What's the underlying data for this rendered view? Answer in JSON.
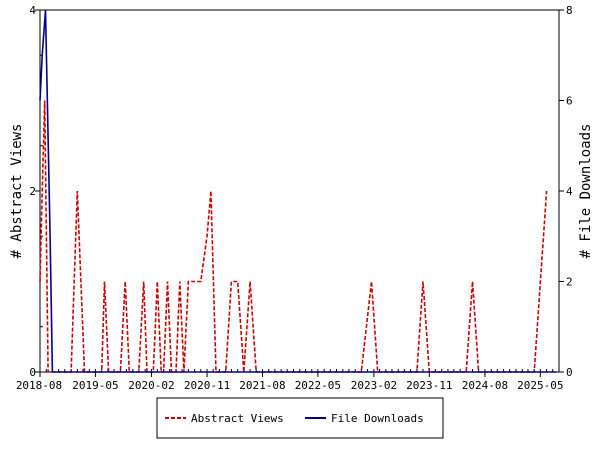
{
  "chart_data": {
    "type": "line",
    "xlabel": "",
    "ylabel_left": "# Abstract Views",
    "ylabel_right": "# File Downloads",
    "x_range": [
      "2018-08",
      "2025-08"
    ],
    "x_ticks": [
      "2018-08",
      "2019-05",
      "2020-02",
      "2020-11",
      "2021-08",
      "2022-05",
      "2023-02",
      "2023-11",
      "2024-08",
      "2025-05"
    ],
    "y_left_range": [
      0,
      4
    ],
    "y_left_ticks": [
      0,
      2,
      4
    ],
    "y_right_range": [
      0,
      8
    ],
    "y_right_ticks": [
      0,
      2,
      4,
      6,
      8
    ],
    "grid": false,
    "legend_position": "bottom-center",
    "series": [
      {
        "name": "Abstract Views",
        "axis": "left",
        "color": "#cc0000",
        "style": "dashed",
        "points": [
          [
            "2018-08-01",
            1
          ],
          [
            "2018-08-12",
            2
          ],
          [
            "2018-08-24",
            3
          ],
          [
            "2018-09-10",
            0
          ],
          [
            "2019-01-01",
            0
          ],
          [
            "2019-02-01",
            2
          ],
          [
            "2019-03-08",
            0
          ],
          [
            "2019-06-01",
            0
          ],
          [
            "2019-06-15",
            1
          ],
          [
            "2019-07-05",
            0
          ],
          [
            "2019-09-01",
            0
          ],
          [
            "2019-09-25",
            1
          ],
          [
            "2019-10-15",
            0
          ],
          [
            "2019-12-01",
            0
          ],
          [
            "2019-12-25",
            1
          ],
          [
            "2020-01-10",
            0
          ],
          [
            "2020-02-10",
            0
          ],
          [
            "2020-03-01",
            1
          ],
          [
            "2020-03-20",
            0
          ],
          [
            "2020-04-01",
            0
          ],
          [
            "2020-04-20",
            1
          ],
          [
            "2020-05-10",
            0
          ],
          [
            "2020-06-01",
            0
          ],
          [
            "2020-06-20",
            1
          ],
          [
            "2020-07-10",
            0
          ],
          [
            "2020-08-01",
            1
          ],
          [
            "2020-10-01",
            1
          ],
          [
            "2020-11-01",
            1.5
          ],
          [
            "2020-11-20",
            2
          ],
          [
            "2020-12-15",
            0
          ],
          [
            "2021-02-01",
            0
          ],
          [
            "2021-03-01",
            1
          ],
          [
            "2021-04-01",
            1
          ],
          [
            "2021-05-01",
            0
          ],
          [
            "2021-06-01",
            1
          ],
          [
            "2021-07-01",
            0
          ],
          [
            "2022-12-01",
            0
          ],
          [
            "2023-01-20",
            1
          ],
          [
            "2023-02-20",
            0
          ],
          [
            "2023-09-01",
            0
          ],
          [
            "2023-10-01",
            1
          ],
          [
            "2023-11-01",
            0
          ],
          [
            "2024-05-01",
            0
          ],
          [
            "2024-06-01",
            1
          ],
          [
            "2024-07-01",
            0
          ],
          [
            "2025-04-01",
            0
          ],
          [
            "2025-06-01",
            2
          ]
        ]
      },
      {
        "name": "File Downloads",
        "axis": "right",
        "color": "#00008b",
        "style": "solid",
        "points": [
          [
            "2018-08-01",
            6
          ],
          [
            "2018-08-12",
            7
          ],
          [
            "2018-08-28",
            8
          ],
          [
            "2018-09-20",
            3
          ],
          [
            "2018-10-01",
            0
          ],
          [
            "2025-07-20",
            0
          ]
        ]
      }
    ]
  }
}
